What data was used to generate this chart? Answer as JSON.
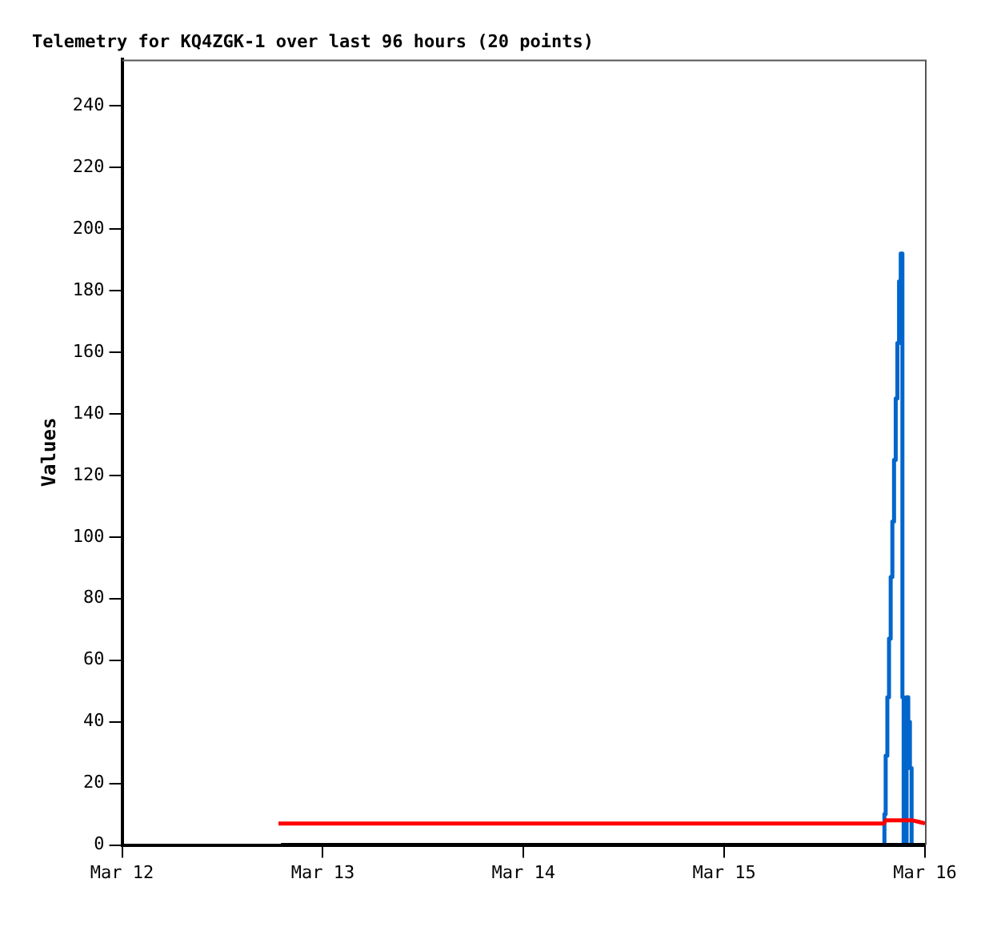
{
  "chart_data": {
    "type": "line",
    "title": "Telemetry for KQ4ZGK-1 over last 96 hours (20 points)",
    "ylabel": "Values",
    "xlim": [
      "--03-12",
      "--03-16"
    ],
    "xticks": [
      {
        "value": "--03-12",
        "label": "Mar 12"
      },
      {
        "value": "--03-13",
        "label": "Mar 13"
      },
      {
        "value": "--03-14",
        "label": "Mar 14"
      },
      {
        "value": "--03-15",
        "label": "Mar 15"
      },
      {
        "value": "--03-16",
        "label": "Mar 16"
      }
    ],
    "ylim": [
      0,
      255
    ],
    "yticks": [
      0,
      20,
      40,
      60,
      80,
      100,
      120,
      140,
      160,
      180,
      200,
      220,
      240
    ],
    "grid": false,
    "legend": false,
    "marker": "none",
    "line_style": "solid",
    "series": [
      {
        "color": "#000000",
        "x": [
          "--03-12T19:00",
          "--03-16T00:00"
        ],
        "values": [
          0,
          0
        ]
      },
      {
        "color": "#ff0000",
        "x": [
          "--03-12T18:42",
          "--03-15T19:06",
          "--03-15T19:18",
          "--03-15T22:30",
          "--03-15T23:18",
          "--03-16T00:00"
        ],
        "values": [
          7,
          7,
          8,
          8,
          7.5,
          7
        ]
      },
      {
        "type": "step",
        "color": "#0066cc",
        "x": [
          "--03-15T19:06",
          "--03-15T19:09",
          "--03-15T19:18",
          "--03-15T19:30",
          "--03-15T19:42",
          "--03-15T19:54",
          "--03-15T20:06",
          "--03-15T20:18",
          "--03-15T20:30",
          "--03-15T20:42",
          "--03-15T20:54",
          "--03-15T21:06",
          "--03-15T21:18",
          "--03-15T21:27",
          "--03-15T21:48",
          "--03-15T22:00",
          "--03-15T22:12",
          "--03-15T22:24"
        ],
        "values": [
          0,
          10,
          29,
          48,
          67,
          87,
          105,
          125,
          145,
          163,
          183,
          192,
          48,
          0,
          48,
          40,
          25,
          0
        ]
      }
    ]
  }
}
